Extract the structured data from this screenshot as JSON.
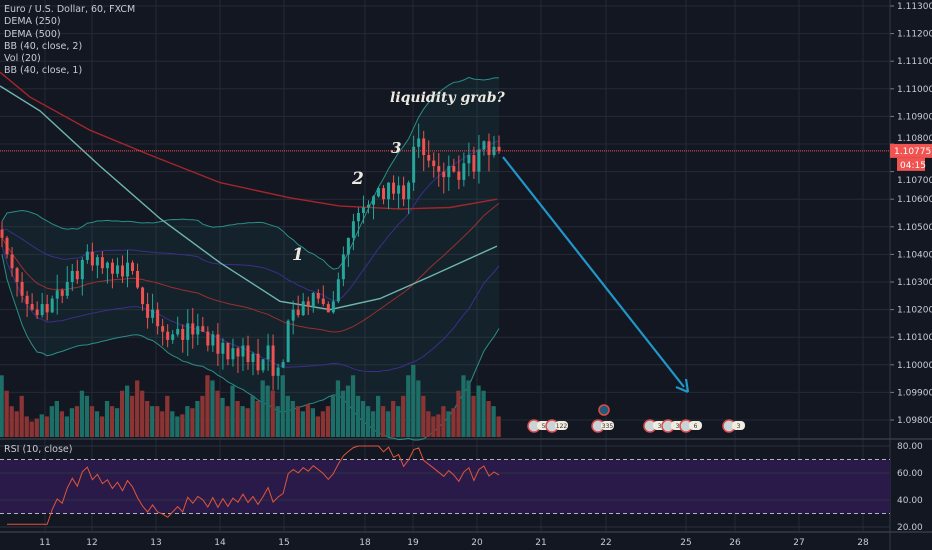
{
  "legend": {
    "symbol": "Euro / U.S. Dollar, 60, FXCM",
    "indicators": [
      "DEMA (250)",
      "DEMA (500)",
      "BB (40, close, 2)",
      "Vol (20)",
      "BB (40, close, 1)"
    ]
  },
  "rsi_legend": "RSI (10, close)",
  "price_badge": {
    "value": "1.10775",
    "countdown": "04:15",
    "color": "#f05350"
  },
  "annotations": {
    "wave1": "1",
    "wave2": "2",
    "wave3": "3",
    "note": "liquidity grab?"
  },
  "colors": {
    "background": "#131722",
    "up": "#26a69a",
    "down": "#ef5350",
    "arrow": "#2196c8",
    "rsi_line": "#e0553a",
    "rsi_band": "#2a1a4a"
  },
  "event_markers": [
    "5",
    "122",
    "335",
    "3",
    "3",
    "6",
    "3"
  ],
  "chart_data": [
    {
      "type": "candlestick",
      "title": "Euro / U.S. Dollar, 60, FXCM",
      "x_tick_labels": [
        "11",
        "12",
        "13",
        "14",
        "15",
        "18",
        "19",
        "20",
        "21",
        "22",
        "25",
        "26",
        "27",
        "28"
      ],
      "y_tick_labels": [
        "1.11300",
        "1.11200",
        "1.11100",
        "1.11000",
        "1.10900",
        "1.10800",
        "1.10700",
        "1.10600",
        "1.10500",
        "1.10400",
        "1.10300",
        "1.10200",
        "1.10100",
        "1.10000",
        "1.09900",
        "1.09800"
      ],
      "ylim": [
        1.0975,
        1.1132
      ],
      "last_price": 1.10775,
      "close": [
        1.1046,
        1.104,
        1.1035,
        1.103,
        1.1025,
        1.1022,
        1.102,
        1.1018,
        1.1022,
        1.1019,
        1.1024,
        1.1027,
        1.1025,
        1.103,
        1.1034,
        1.1031,
        1.1038,
        1.1041,
        1.1036,
        1.1039,
        1.1035,
        1.1037,
        1.1033,
        1.1036,
        1.1032,
        1.1037,
        1.1034,
        1.1028,
        1.1022,
        1.1017,
        1.102,
        1.1014,
        1.1012,
        1.1009,
        1.1011,
        1.1013,
        1.1009,
        1.1015,
        1.1011,
        1.1014,
        1.1012,
        1.1007,
        1.1011,
        1.1004,
        1.1008,
        1.1002,
        1.1006,
        1.1003,
        1.1007,
        1.1001,
        1.1004,
        1.0998,
        1.1002,
        1.1007,
        1.0996,
        1.0999,
        1.1001,
        1.1016,
        1.102,
        1.1018,
        1.1023,
        1.1021,
        1.1026,
        1.1024,
        1.1022,
        1.1019,
        1.1023,
        1.1031,
        1.104,
        1.1046,
        1.1052,
        1.1055,
        1.1057,
        1.1058,
        1.1061,
        1.1064,
        1.106,
        1.1066,
        1.1062,
        1.1065,
        1.106,
        1.1066,
        1.1079,
        1.1082,
        1.1076,
        1.1074,
        1.1072,
        1.107,
        1.1068,
        1.1072,
        1.107,
        1.1067,
        1.1073,
        1.1076,
        1.107,
        1.1078,
        1.1081,
        1.1076,
        1.1079,
        1.10775
      ],
      "volume": [
        60,
        45,
        30,
        25,
        40,
        20,
        15,
        18,
        22,
        20,
        30,
        35,
        25,
        20,
        28,
        30,
        45,
        40,
        30,
        25,
        20,
        35,
        30,
        28,
        45,
        50,
        40,
        55,
        45,
        35,
        30,
        30,
        25,
        40,
        25,
        20,
        22,
        30,
        28,
        35,
        40,
        60,
        55,
        45,
        38,
        30,
        50,
        35,
        30,
        28,
        40,
        35,
        55,
        50,
        45,
        30,
        60,
        40,
        35,
        30,
        25,
        32,
        28,
        20,
        25,
        30,
        40,
        55,
        45,
        50,
        60,
        40,
        35,
        30,
        25,
        40,
        30,
        25,
        35,
        30,
        40,
        60,
        70,
        55,
        40,
        25,
        20,
        22,
        30,
        25,
        28,
        45,
        60,
        55,
        40,
        50,
        45,
        35,
        30,
        20
      ],
      "dema_250": [
        [
          0,
          1.1106
        ],
        [
          30,
          1.1097
        ],
        [
          90,
          1.1085
        ],
        [
          150,
          1.1076
        ],
        [
          220,
          1.1066
        ],
        [
          290,
          1.10605
        ],
        [
          340,
          1.10575
        ],
        [
          400,
          1.10565
        ],
        [
          450,
          1.1057
        ],
        [
          497,
          1.106
        ]
      ],
      "dema_500": [
        [
          0,
          1.1101
        ],
        [
          40,
          1.1092
        ],
        [
          100,
          1.1072
        ],
        [
          160,
          1.1053
        ],
        [
          220,
          1.1037
        ],
        [
          280,
          1.1023
        ],
        [
          330,
          1.102
        ],
        [
          380,
          1.1024
        ],
        [
          430,
          1.1032
        ],
        [
          497,
          1.1043
        ]
      ],
      "rsi": {
        "ylim": [
          15,
          85
        ],
        "levels": [
          70,
          30
        ],
        "y_tick_labels": [
          "80.00",
          "60.00",
          "40.00",
          "20.00"
        ]
      }
    }
  ]
}
